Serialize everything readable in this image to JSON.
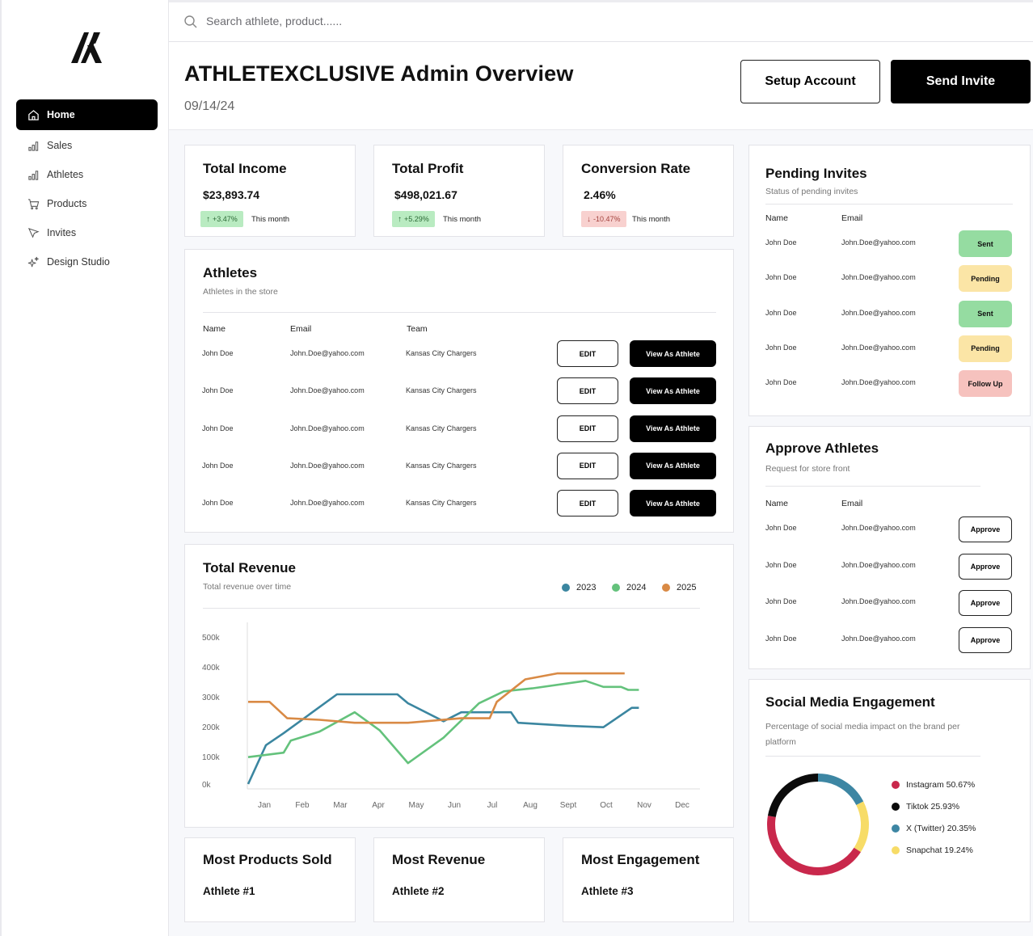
{
  "sidebar": {
    "items": [
      {
        "label": "Home",
        "icon": "home-icon",
        "active": true
      },
      {
        "label": "Sales",
        "icon": "bar-chart-icon"
      },
      {
        "label": "Athletes",
        "icon": "bar-chart-icon"
      },
      {
        "label": "Products",
        "icon": "cart-icon"
      },
      {
        "label": "Invites",
        "icon": "cursor-icon"
      },
      {
        "label": "Design Studio",
        "icon": "sparkle-icon"
      }
    ]
  },
  "search": {
    "placeholder": "Search athlete, product......"
  },
  "header": {
    "title": "ATHLETEXCLUSIVE Admin Overview",
    "date": "09/14/24",
    "setup_label": "Setup Account",
    "invite_label": "Send Invite"
  },
  "stats": [
    {
      "title": "Total Income",
      "value": "$23,893.74",
      "change": "+3.47%",
      "direction": "up",
      "note": "This month"
    },
    {
      "title": "Total Profit",
      "value": "$498,021.67",
      "change": "+5.29%",
      "direction": "up",
      "note": "This month"
    },
    {
      "title": "Conversion Rate",
      "value": "2.46%",
      "change": "-10.47%",
      "direction": "down",
      "note": "This month"
    }
  ],
  "athletes": {
    "title": "Athletes",
    "subtitle": "Athletes in the store",
    "columns": [
      "Name",
      "Email",
      "Team"
    ],
    "edit_label": "EDIT",
    "view_label": "View As Athlete",
    "rows": [
      {
        "name": "John Doe",
        "email": "John.Doe@yahoo.com",
        "team": "Kansas City Chargers"
      },
      {
        "name": "John Doe",
        "email": "John.Doe@yahoo.com",
        "team": "Kansas City Chargers"
      },
      {
        "name": "John Doe",
        "email": "John.Doe@yahoo.com",
        "team": "Kansas City Chargers"
      },
      {
        "name": "John Doe",
        "email": "John.Doe@yahoo.com",
        "team": "Kansas City Chargers"
      },
      {
        "name": "John Doe",
        "email": "John.Doe@yahoo.com",
        "team": "Kansas City Chargers"
      }
    ]
  },
  "pending": {
    "title": "Pending Invites",
    "subtitle": "Status of pending invites",
    "columns": [
      "Name",
      "Email"
    ],
    "rows": [
      {
        "name": "John Doe",
        "email": "John.Doe@yahoo.com",
        "status": "Sent"
      },
      {
        "name": "John Doe",
        "email": "John.Doe@yahoo.com",
        "status": "Pending"
      },
      {
        "name": "John Doe",
        "email": "John.Doe@yahoo.com",
        "status": "Sent"
      },
      {
        "name": "John Doe",
        "email": "John.Doe@yahoo.com",
        "status": "Pending"
      },
      {
        "name": "John Doe",
        "email": "John.Doe@yahoo.com",
        "status": "Follow Up"
      }
    ],
    "status_colors": {
      "Sent": "#95dca1",
      "Pending": "#fbe5a6",
      "Follow Up": "#f6c2be"
    }
  },
  "approve": {
    "title": "Approve Athletes",
    "subtitle": "Request for store front",
    "columns": [
      "Name",
      "Email"
    ],
    "approve_label": "Approve",
    "rows": [
      {
        "name": "John Doe",
        "email": "John.Doe@yahoo.com"
      },
      {
        "name": "John Doe",
        "email": "John.Doe@yahoo.com"
      },
      {
        "name": "John Doe",
        "email": "John.Doe@yahoo.com"
      },
      {
        "name": "John Doe",
        "email": "John.Doe@yahoo.com"
      }
    ]
  },
  "revenue": {
    "title": "Total Revenue",
    "subtitle": "Total revenue over time"
  },
  "chart_data": [
    {
      "type": "line",
      "title": "Total Revenue",
      "subtitle": "Total revenue over time",
      "categories": [
        "Jan",
        "Feb",
        "Mar",
        "Apr",
        "May",
        "Jun",
        "Jul",
        "Aug",
        "Sept",
        "Oct",
        "Nov",
        "Dec"
      ],
      "y_ticks": [
        "500k",
        "400k",
        "300k",
        "200k",
        "100k",
        "0k"
      ],
      "ylim": [
        0,
        550000
      ],
      "legend": "top-right",
      "series": [
        {
          "name": "2023",
          "color": "#3b86a0",
          "points": [
            [
              0.0,
              0
            ],
            [
              0.5,
              130000
            ],
            [
              1.0,
              170000
            ],
            [
              2.5,
              300000
            ],
            [
              3.0,
              300000
            ],
            [
              4.2,
              300000
            ],
            [
              4.5,
              270000
            ],
            [
              5.5,
              210000
            ],
            [
              6.0,
              240000
            ],
            [
              7.4,
              240000
            ],
            [
              7.6,
              205000
            ],
            [
              9.0,
              195000
            ],
            [
              10.0,
              190000
            ],
            [
              10.8,
              255000
            ],
            [
              11.0,
              255000
            ]
          ]
        },
        {
          "name": "2024",
          "color": "#64c27c",
          "points": [
            [
              0.0,
              90000
            ],
            [
              1.0,
              105000
            ],
            [
              1.2,
              145000
            ],
            [
              2.0,
              175000
            ],
            [
              3.0,
              240000
            ],
            [
              3.7,
              180000
            ],
            [
              4.5,
              70000
            ],
            [
              5.5,
              155000
            ],
            [
              6.5,
              270000
            ],
            [
              7.2,
              310000
            ],
            [
              8.0,
              320000
            ],
            [
              9.5,
              345000
            ],
            [
              10.0,
              325000
            ],
            [
              10.5,
              325000
            ],
            [
              10.7,
              315000
            ],
            [
              11.0,
              315000
            ]
          ]
        },
        {
          "name": "2025",
          "color": "#d98a45",
          "points": [
            [
              0.0,
              275000
            ],
            [
              0.6,
              275000
            ],
            [
              1.1,
              220000
            ],
            [
              2.0,
              215000
            ],
            [
              3.0,
              205000
            ],
            [
              4.5,
              205000
            ],
            [
              6.0,
              220000
            ],
            [
              6.8,
              220000
            ],
            [
              7.0,
              275000
            ],
            [
              7.8,
              350000
            ],
            [
              8.7,
              370000
            ],
            [
              9.5,
              370000
            ],
            [
              10.6,
              370000
            ]
          ]
        }
      ]
    },
    {
      "type": "pie",
      "title": "Social Media Engagement",
      "subtitle": "Percentage of social media impact on the brand per platform",
      "slices": [
        {
          "name": "Instagram 50.67%",
          "value": 50.67,
          "color": "#c9284c"
        },
        {
          "name": "Tiktok 25.93%",
          "value": 25.93,
          "color": "#0b0b0b"
        },
        {
          "name": "X (Twitter) 20.35%",
          "value": 20.35,
          "color": "#3d86a3"
        },
        {
          "name": "Snapchat 19.24%",
          "value": 19.24,
          "color": "#f7dc67"
        }
      ]
    }
  ],
  "top": [
    {
      "title": "Most Products Sold",
      "athlete": "Athlete #1"
    },
    {
      "title": "Most Revenue",
      "athlete": "Athlete #2"
    },
    {
      "title": "Most Engagement",
      "athlete": "Athlete #3"
    }
  ]
}
